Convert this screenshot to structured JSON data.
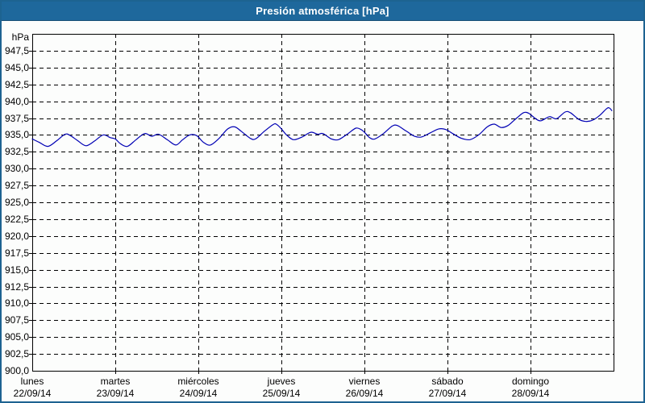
{
  "window": {
    "title": "Presión atmosférica [hPa]"
  },
  "colors": {
    "titlebar": "#1e689c",
    "window_border": "#1d6391",
    "bg": "#fcfdfc",
    "title_text": "#ffffff",
    "label_text": "#000000",
    "grid": "#000000",
    "axis": "#000000"
  },
  "chart_data": {
    "type": "line",
    "title": "Presión atmosférica [hPa]",
    "unit_label": "hPa",
    "ylabel": "hPa",
    "ylim": [
      900,
      950
    ],
    "ytick_step": 2.5,
    "yticks": [
      947.5,
      945.0,
      942.5,
      940.0,
      937.5,
      935.0,
      932.5,
      930.0,
      927.5,
      925.0,
      922.5,
      920.0,
      917.5,
      915.0,
      912.5,
      910.0,
      907.5,
      905.0,
      902.5,
      900.0
    ],
    "ytick_labels": [
      "947,5",
      "945,0",
      "942,5",
      "940,0",
      "937,5",
      "935,0",
      "932,5",
      "930,0",
      "927,5",
      "925,0",
      "922,5",
      "920,0",
      "917,5",
      "915,0",
      "912,5",
      "910,0",
      "907,5",
      "905,0",
      "902,5",
      "900,0"
    ],
    "grid": "dashed",
    "legend": "none",
    "x_hours_total": 168,
    "x_days": [
      {
        "weekday": "lunes",
        "date": "22/09/14"
      },
      {
        "weekday": "martes",
        "date": "23/09/14"
      },
      {
        "weekday": "miércoles",
        "date": "24/09/14"
      },
      {
        "weekday": "jueves",
        "date": "25/09/14"
      },
      {
        "weekday": "viernes",
        "date": "26/09/14"
      },
      {
        "weekday": "sábado",
        "date": "27/09/14"
      },
      {
        "weekday": "domingo",
        "date": "28/09/14"
      }
    ],
    "series": [
      {
        "name": "Presión atmosférica",
        "color": "#0000b4",
        "points_hours_hpa": [
          [
            0,
            934.4
          ],
          [
            2,
            933.9
          ],
          [
            4.5,
            933.3
          ],
          [
            7,
            934.1
          ],
          [
            9.5,
            935.1
          ],
          [
            11,
            934.9
          ],
          [
            13,
            934.2
          ],
          [
            15.5,
            933.4
          ],
          [
            18,
            934.1
          ],
          [
            20.5,
            935.0
          ],
          [
            22.5,
            934.6
          ],
          [
            24,
            934.4
          ],
          [
            25.5,
            933.7
          ],
          [
            27.5,
            933.3
          ],
          [
            30,
            934.3
          ],
          [
            32.5,
            935.2
          ],
          [
            34.5,
            934.8
          ],
          [
            36.5,
            935.1
          ],
          [
            39,
            934.3
          ],
          [
            41.5,
            933.5
          ],
          [
            43.5,
            934.3
          ],
          [
            45.5,
            935.0
          ],
          [
            47.5,
            934.9
          ],
          [
            49.5,
            933.9
          ],
          [
            51.5,
            933.5
          ],
          [
            54,
            934.5
          ],
          [
            56.5,
            935.9
          ],
          [
            58.5,
            936.2
          ],
          [
            60.5,
            935.5
          ],
          [
            63,
            934.5
          ],
          [
            64.5,
            934.4
          ],
          [
            67,
            935.5
          ],
          [
            69.5,
            936.5
          ],
          [
            70.5,
            936.6
          ],
          [
            72,
            935.9
          ],
          [
            73.5,
            935.0
          ],
          [
            75.5,
            934.3
          ],
          [
            78,
            934.7
          ],
          [
            80.5,
            935.4
          ],
          [
            82.5,
            935.1
          ],
          [
            84,
            935.2
          ],
          [
            86.5,
            934.4
          ],
          [
            88.5,
            934.3
          ],
          [
            91,
            935.1
          ],
          [
            93.5,
            936.0
          ],
          [
            95,
            935.8
          ],
          [
            96,
            935.4
          ],
          [
            97.5,
            934.6
          ],
          [
            99,
            934.4
          ],
          [
            101.5,
            935.2
          ],
          [
            104,
            936.3
          ],
          [
            105.5,
            936.4
          ],
          [
            108,
            935.6
          ],
          [
            110.5,
            934.8
          ],
          [
            112.5,
            934.7
          ],
          [
            115,
            935.3
          ],
          [
            117.5,
            935.9
          ],
          [
            119.5,
            935.8
          ],
          [
            121.5,
            935.2
          ],
          [
            124,
            934.5
          ],
          [
            126.5,
            934.3
          ],
          [
            129,
            935.0
          ],
          [
            131.5,
            936.2
          ],
          [
            133.5,
            936.6
          ],
          [
            135.5,
            936.1
          ],
          [
            137.5,
            936.4
          ],
          [
            140,
            937.5
          ],
          [
            142,
            938.3
          ],
          [
            143.5,
            938.2
          ],
          [
            145.5,
            937.4
          ],
          [
            147,
            937.1
          ],
          [
            149.5,
            937.7
          ],
          [
            151.5,
            937.4
          ],
          [
            154,
            938.4
          ],
          [
            155.5,
            938.3
          ],
          [
            158,
            937.3
          ],
          [
            160,
            937.0
          ],
          [
            162,
            937.2
          ],
          [
            164,
            937.9
          ],
          [
            166,
            938.9
          ],
          [
            166.8,
            939.0
          ],
          [
            167.5,
            938.6
          ]
        ]
      }
    ]
  }
}
